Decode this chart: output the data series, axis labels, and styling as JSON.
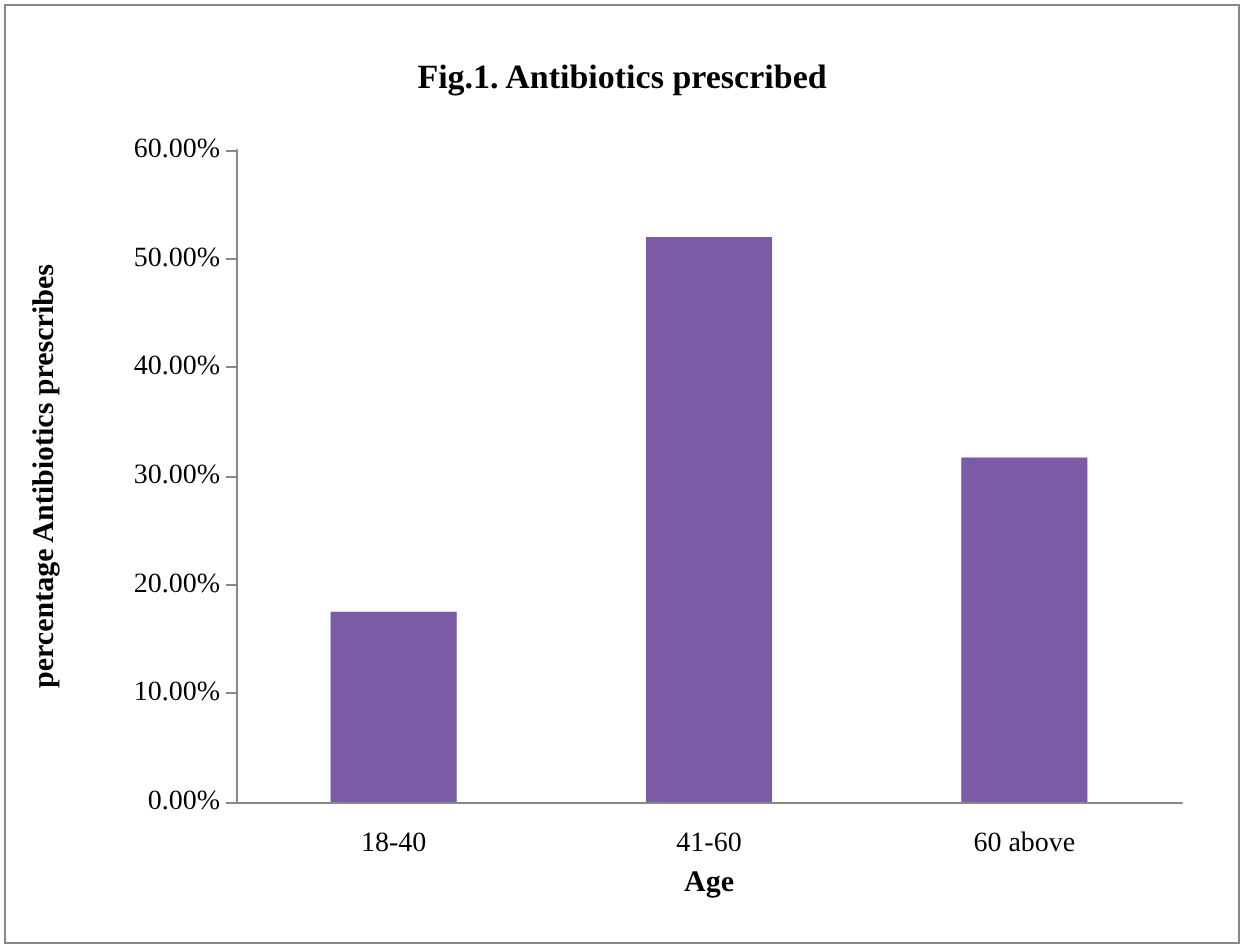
{
  "chart_data": {
    "type": "bar",
    "title": "Fig.1. Antibiotics prescribed",
    "xlabel": "Age",
    "ylabel": "percentage Antibiotics prescribes",
    "categories": [
      "18-40",
      "41-60",
      "60 above"
    ],
    "values": [
      17.5,
      52.0,
      31.7
    ],
    "color": "#7b5aa6",
    "ylim": [
      0,
      60
    ],
    "yticks": [
      {
        "value": 0,
        "label": "0.00%"
      },
      {
        "value": 10,
        "label": "10.00%"
      },
      {
        "value": 20,
        "label": "20.00%"
      },
      {
        "value": 30,
        "label": "30.00%"
      },
      {
        "value": 40,
        "label": "40.00%"
      },
      {
        "value": 50,
        "label": "50.00%"
      },
      {
        "value": 60,
        "label": "60.00%"
      }
    ],
    "grid": false
  }
}
